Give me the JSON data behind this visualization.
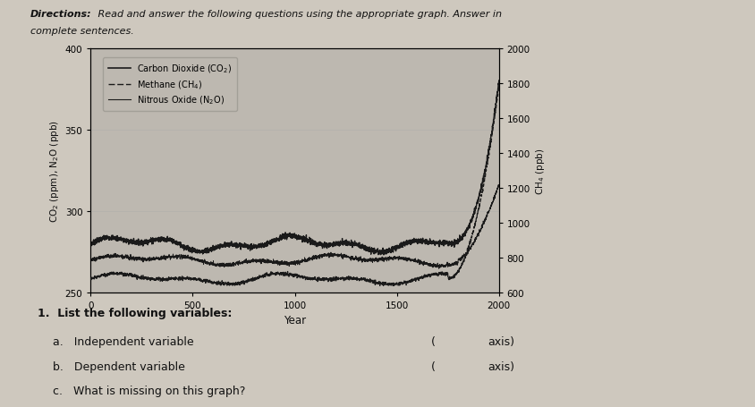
{
  "xlabel": "Year",
  "ylabel_left": "CO₂ (ppm), N₂O (ppb)",
  "ylabel_right": "CH₄ (ppb)",
  "xlim": [
    0,
    2000
  ],
  "ylim_left": [
    250,
    400
  ],
  "ylim_right": [
    600,
    2000
  ],
  "xticks": [
    0,
    500,
    1000,
    1500,
    2000
  ],
  "yticks_left": [
    250,
    300,
    350,
    400
  ],
  "yticks_right": [
    600,
    800,
    1000,
    1200,
    1400,
    1600,
    1800,
    2000
  ],
  "fig_bg": "#cec8be",
  "plot_bg": "#bdb8b0",
  "line_color": "#1a1a1a",
  "text_color": "#111111",
  "directions_bold": "Directions:",
  "directions_rest": " Read and answer the following questions using the appropriate graph. Answer in\ncomplete sentences."
}
